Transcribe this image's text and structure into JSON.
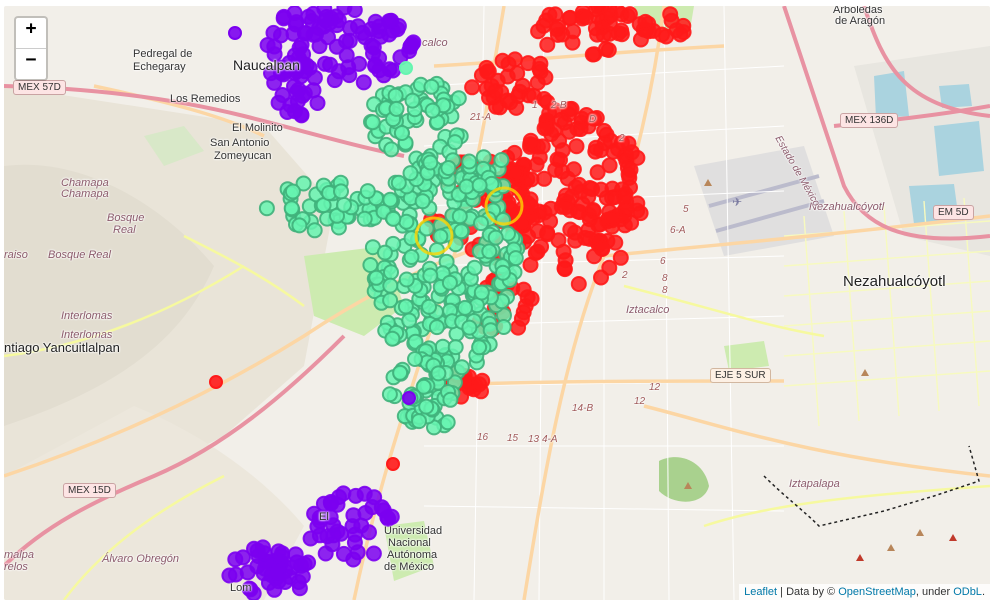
{
  "map": {
    "zoom_in": "+",
    "zoom_out": "−",
    "attribution": {
      "leaflet": "Leaflet",
      "sep": " | Data by © ",
      "osm": "OpenStreetMap",
      "under": ", under ",
      "odbl": "ODbL",
      "end": "."
    }
  },
  "place_labels": {
    "arboledas": "Arboledas",
    "de_aragon": "de Aragón",
    "pedregal": "Pedregal de",
    "echegaray": "Echegaray",
    "naucalpan": "Naucalpan",
    "los_remedios": "Los Remedios",
    "el_molinito": "El Molinito",
    "san_antonio": "San Antonio",
    "zomeyucan": "Zomeyucan",
    "chamapa1": "Chamapa",
    "chamapa2": "Chamapa",
    "bosque1": "Bosque",
    "real1": "Real",
    "raiso": "raiso",
    "bosque_real": "Bosque Real",
    "interlomas1": "Interlomas",
    "interlomas2": "Interlomas",
    "santiago": "ntiago Yancuitlalpan",
    "nezahualcoyotl_small": "Nezahualcóyotl",
    "nezahualcoyotl": "Nezahualcóyotl",
    "iztacalco": "Iztacalco",
    "iztapalapa": "Iztapalapa",
    "alvaro_obregon": "Álvaro Obregón",
    "malpa": "malpa",
    "relos": "relos",
    "estado": "Estado de México",
    "unam1": "Universidad",
    "unam2": "Nacional",
    "unam3": "Autónoma",
    "unam4": "de México",
    "el": "El",
    "lom": "Lom",
    "tlaco": "calco"
  },
  "shields": {
    "mex57d": "MEX 57D",
    "mex136d": "MEX 136D",
    "em5d": "EM 5D",
    "mex15d": "MEX 15D",
    "eje5sur": "EJE 5 SUR"
  },
  "road_numbers": [
    "2",
    "2-B",
    "D",
    "2",
    "5",
    "6-A",
    "6",
    "8",
    "8",
    "12",
    "12",
    "14-B",
    "16",
    "15",
    "13",
    "4-A",
    "21-A",
    "1"
  ],
  "markers": {
    "colors": {
      "purple": "#7b00f0",
      "red": "#ff1a1a",
      "mint": "#66f5b0",
      "mint_dark": "#3fb07a",
      "yellow": "#ffd400"
    },
    "clusters": [
      "purple",
      "red",
      "mint"
    ]
  }
}
